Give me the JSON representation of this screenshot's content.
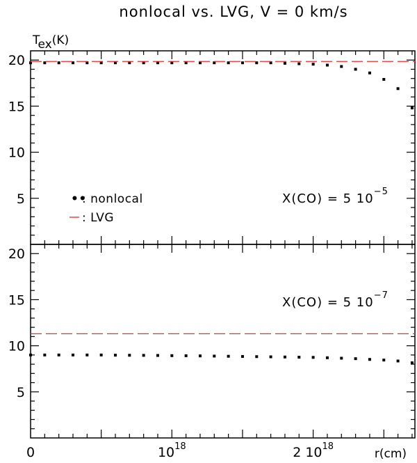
{
  "title": "nonlocal vs. LVG, V = 0 km/s",
  "chart_data": {
    "type": "scatter",
    "xlabel": "r(cm)",
    "xlim": [
      0,
      2.72e+18
    ],
    "x_tick_labels": [
      {
        "x": 0,
        "main": "0",
        "exp": ""
      },
      {
        "x": 1e+18,
        "main": "10",
        "exp": "18"
      },
      {
        "x": 2e+18,
        "main": "2 10",
        "exp": "18"
      }
    ],
    "legend": {
      "nonlocal_marker": "••",
      "nonlocal_label": ": nonlocal",
      "lvg_label": ": LVG"
    },
    "panels": [
      {
        "ylabel_main": "T",
        "ylabel_sub": "ex",
        "ylabel_rest": "(K)",
        "ylim": [
          0,
          21
        ],
        "yticks": [
          5,
          10,
          15,
          20
        ],
        "annotation_text": "X(CO) = 5 10",
        "annotation_exp": "−5",
        "series": [
          {
            "name": "nonlocal",
            "style": "dotted",
            "color": "#000000",
            "x": [
              0,
              1e+17,
              2e+17,
              3e+17,
              4e+17,
              5e+17,
              6e+17,
              7e+17,
              8e+17,
              9e+17,
              1e+18,
              1.1e+18,
              1.2e+18,
              1.3e+18,
              1.4e+18,
              1.5e+18,
              1.6e+18,
              1.7e+18,
              1.8e+18,
              1.9e+18,
              2e+18,
              2.1e+18,
              2.2e+18,
              2.3e+18,
              2.4e+18,
              2.5e+18,
              2.6e+18,
              2.7e+18
            ],
            "y": [
              19.7,
              19.7,
              19.7,
              19.7,
              19.7,
              19.7,
              19.7,
              19.7,
              19.7,
              19.7,
              19.7,
              19.7,
              19.7,
              19.7,
              19.7,
              19.7,
              19.7,
              19.7,
              19.65,
              19.6,
              19.55,
              19.45,
              19.3,
              19.0,
              18.6,
              17.9,
              16.9,
              14.8
            ]
          },
          {
            "name": "LVG",
            "style": "dashed",
            "color": "#e03030",
            "x": [
              0,
              2.72e+18
            ],
            "y": [
              19.85,
              19.85
            ]
          }
        ]
      },
      {
        "ylim": [
          0,
          21
        ],
        "yticks": [
          5,
          10,
          15,
          20
        ],
        "annotation_text": "X(CO) = 5 10",
        "annotation_exp": "−7",
        "series": [
          {
            "name": "nonlocal",
            "style": "dotted",
            "color": "#000000",
            "x": [
              0,
              1e+17,
              2e+17,
              3e+17,
              4e+17,
              5e+17,
              6e+17,
              7e+17,
              8e+17,
              9e+17,
              1e+18,
              1.1e+18,
              1.2e+18,
              1.3e+18,
              1.4e+18,
              1.5e+18,
              1.6e+18,
              1.7e+18,
              1.8e+18,
              1.9e+18,
              2e+18,
              2.1e+18,
              2.2e+18,
              2.3e+18,
              2.4e+18,
              2.5e+18,
              2.6e+18,
              2.7e+18
            ],
            "y": [
              9.0,
              9.0,
              9.0,
              9.0,
              9.0,
              9.0,
              8.98,
              8.97,
              8.96,
              8.95,
              8.93,
              8.92,
              8.9,
              8.88,
              8.86,
              8.84,
              8.82,
              8.8,
              8.78,
              8.76,
              8.74,
              8.7,
              8.65,
              8.6,
              8.52,
              8.45,
              8.35,
              8.15
            ]
          },
          {
            "name": "LVG",
            "style": "dashed",
            "color": "#e03030",
            "x": [
              0,
              2.72e+18
            ],
            "y": [
              11.3,
              11.3
            ]
          }
        ]
      }
    ]
  }
}
